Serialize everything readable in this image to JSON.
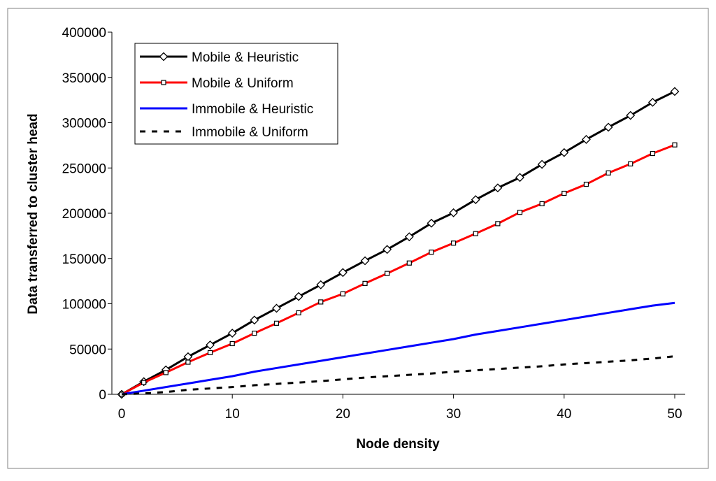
{
  "chart_data": {
    "type": "line",
    "title": "",
    "xlabel": "Node density",
    "ylabel": "Data transferred to cluster head",
    "xlim": [
      0,
      50
    ],
    "ylim": [
      0,
      400000
    ],
    "xticks": [
      0,
      10,
      20,
      30,
      40,
      50
    ],
    "yticks": [
      0,
      50000,
      100000,
      150000,
      200000,
      250000,
      300000,
      350000,
      400000
    ],
    "xtick_labels": [
      "0",
      "10",
      "20",
      "30",
      "40",
      "50"
    ],
    "ytick_labels": [
      "0",
      "50000",
      "100000",
      "150000",
      "200000",
      "250000",
      "300000",
      "350000",
      "400000"
    ],
    "grid": false,
    "legend_position": "top-left",
    "x": [
      0,
      2,
      4,
      6,
      8,
      10,
      12,
      14,
      16,
      18,
      20,
      22,
      24,
      26,
      28,
      30,
      32,
      34,
      36,
      38,
      40,
      42,
      44,
      46,
      48,
      50
    ],
    "series": [
      {
        "name": "Mobile & Heuristic",
        "color": "#000000",
        "marker": "diamond",
        "dash": "solid",
        "values": [
          0,
          14000,
          27000,
          41500,
          54500,
          67500,
          82000,
          95000,
          108000,
          121000,
          134500,
          147500,
          160000,
          174000,
          189000,
          200500,
          215000,
          228000,
          239500,
          254000,
          267000,
          281500,
          295000,
          308000,
          322500,
          334500
        ]
      },
      {
        "name": "Mobile & Uniform",
        "color": "#ff0000",
        "marker": "square",
        "dash": "solid",
        "values": [
          0,
          13000,
          24000,
          35500,
          46000,
          56000,
          67500,
          78500,
          90000,
          102000,
          111000,
          122500,
          133500,
          145000,
          157000,
          167000,
          177500,
          188500,
          201000,
          210500,
          222000,
          232000,
          244500,
          254500,
          266000,
          275500
        ]
      },
      {
        "name": "Immobile & Heuristic",
        "color": "#0000ff",
        "marker": "none",
        "dash": "solid",
        "values": [
          0,
          4000,
          8000,
          12000,
          16000,
          20000,
          25000,
          29000,
          33000,
          37000,
          41000,
          45000,
          49000,
          53000,
          57000,
          61000,
          66000,
          70000,
          74000,
          78000,
          82000,
          86000,
          90000,
          94000,
          98000,
          101000
        ]
      },
      {
        "name": "Immobile & Uniform",
        "color": "#000000",
        "marker": "none",
        "dash": "dashed",
        "values": [
          0,
          1000,
          2500,
          5000,
          6500,
          8000,
          10000,
          11500,
          13000,
          14500,
          16500,
          18500,
          20000,
          21500,
          23000,
          25000,
          26500,
          28000,
          29500,
          31000,
          33000,
          34500,
          36000,
          37500,
          39500,
          42000
        ]
      }
    ]
  }
}
